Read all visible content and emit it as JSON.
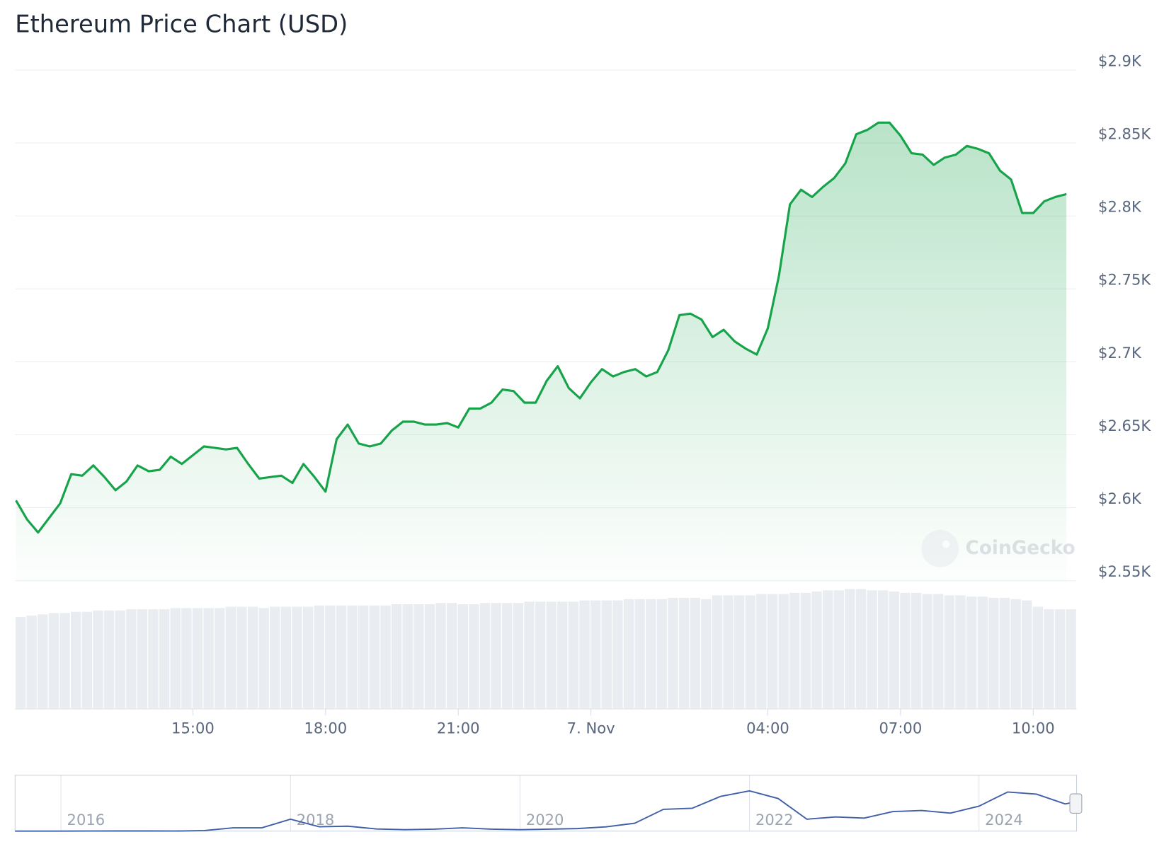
{
  "chart_data": [
    {
      "type": "area",
      "title": "Ethereum Price Chart (USD)",
      "watermark": "CoinGecko",
      "color": "#16a34a",
      "volume_color": "#e9ecf0",
      "grid": true,
      "x": [
        11,
        11.25,
        11.5,
        11.75,
        12,
        12.25,
        12.5,
        12.75,
        13,
        13.25,
        13.5,
        13.75,
        14,
        14.25,
        14.5,
        14.75,
        15,
        15.25,
        15.5,
        15.75,
        16,
        16.25,
        16.5,
        16.75,
        17,
        17.25,
        17.5,
        17.75,
        18,
        18.25,
        18.5,
        18.75,
        19,
        19.25,
        19.5,
        19.75,
        20,
        20.25,
        20.5,
        20.75,
        21,
        21.25,
        21.5,
        21.75,
        22,
        22.25,
        22.5,
        22.75,
        23,
        23.25,
        23.5,
        23.75,
        24,
        24.25,
        24.5,
        24.75,
        25,
        25.25,
        25.5,
        25.75,
        26,
        26.25,
        26.5,
        26.75,
        27,
        27.25,
        27.5,
        27.75,
        28,
        28.25,
        28.5,
        28.75,
        29,
        29.25,
        29.5,
        29.75,
        30,
        30.25,
        30.5,
        30.75,
        31,
        31.25,
        31.5,
        31.75,
        32,
        32.25,
        32.5,
        32.75,
        33,
        33.25,
        33.5,
        33.75,
        34,
        34.25,
        34.5,
        34.75
      ],
      "values": [
        2605,
        2592,
        2583,
        2593,
        2603,
        2623,
        2622,
        2629,
        2621,
        2612,
        2618,
        2629,
        2625,
        2626,
        2635,
        2630,
        2636,
        2642,
        2641,
        2640,
        2641,
        2630,
        2620,
        2621,
        2622,
        2617,
        2630,
        2621,
        2611,
        2647,
        2657,
        2644,
        2642,
        2644,
        2653,
        2659,
        2659,
        2657,
        2657,
        2658,
        2655,
        2668,
        2668,
        2672,
        2681,
        2680,
        2672,
        2672,
        2687,
        2697,
        2682,
        2675,
        2686,
        2695,
        2690,
        2693,
        2695,
        2690,
        2693,
        2708,
        2732,
        2733,
        2729,
        2717,
        2722,
        2714,
        2709,
        2705,
        2723,
        2759,
        2808,
        2818,
        2813,
        2820,
        2826,
        2836,
        2856,
        2859,
        2864,
        2864,
        2855,
        2843,
        2842,
        2835,
        2840,
        2842,
        2848,
        2846,
        2843,
        2831,
        2825,
        2802,
        2802,
        2810,
        2813,
        2815
      ],
      "volume": [
        72,
        73,
        74,
        75,
        75,
        76,
        76,
        77,
        77,
        77,
        78,
        78,
        78,
        78,
        79,
        79,
        79,
        79,
        79,
        80,
        80,
        80,
        79,
        80,
        80,
        80,
        80,
        81,
        81,
        81,
        81,
        81,
        81,
        81,
        82,
        82,
        82,
        82,
        83,
        83,
        82,
        82,
        83,
        83,
        83,
        83,
        84,
        84,
        84,
        84,
        84,
        85,
        85,
        85,
        85,
        86,
        86,
        86,
        86,
        87,
        87,
        87,
        86,
        89,
        89,
        89,
        89,
        90,
        90,
        90,
        91,
        91,
        92,
        93,
        93,
        94,
        94,
        93,
        93,
        92,
        91,
        91,
        90,
        90,
        89,
        89,
        88,
        88,
        87,
        87,
        86,
        85,
        80,
        78,
        78,
        78
      ],
      "volume_lim": [
        0,
        100
      ],
      "xlim": [
        10.98,
        34.98
      ],
      "xticks": [
        {
          "value": 15,
          "label": "15:00"
        },
        {
          "value": 18,
          "label": "18:00"
        },
        {
          "value": 21,
          "label": "21:00"
        },
        {
          "value": 24,
          "label": "7. Nov"
        },
        {
          "value": 28,
          "label": "04:00"
        },
        {
          "value": 31,
          "label": "07:00"
        },
        {
          "value": 34,
          "label": "10:00"
        }
      ],
      "ylim": [
        2550,
        2900
      ],
      "yticks": [
        {
          "value": 2550,
          "label": "$2.55K"
        },
        {
          "value": 2600,
          "label": "$2.6K"
        },
        {
          "value": 2650,
          "label": "$2.65K"
        },
        {
          "value": 2700,
          "label": "$2.7K"
        },
        {
          "value": 2750,
          "label": "$2.75K"
        },
        {
          "value": 2800,
          "label": "$2.8K"
        },
        {
          "value": 2850,
          "label": "$2.85K"
        },
        {
          "value": 2900,
          "label": "$2.9K"
        }
      ]
    },
    {
      "type": "line",
      "color": "#3f5fa8",
      "x": [
        2015.6,
        2015.75,
        2016,
        2016.25,
        2016.5,
        2016.75,
        2017,
        2017.25,
        2017.5,
        2017.75,
        2018,
        2018.25,
        2018.5,
        2018.75,
        2019,
        2019.25,
        2019.5,
        2019.75,
        2020,
        2020.25,
        2020.5,
        2020.75,
        2021,
        2021.25,
        2021.5,
        2021.75,
        2022,
        2022.25,
        2022.5,
        2022.75,
        2023,
        2023.25,
        2023.5,
        2023.75,
        2024,
        2024.25,
        2024.5,
        2024.75,
        2024.85
      ],
      "values": [
        1,
        1,
        1,
        10,
        12,
        11,
        8,
        50,
        300,
        300,
        1100,
        400,
        450,
        200,
        130,
        180,
        300,
        180,
        130,
        180,
        230,
        390,
        730,
        2000,
        2100,
        3200,
        3700,
        3000,
        1100,
        1300,
        1200,
        1800,
        1900,
        1650,
        2300,
        3600,
        3400,
        2500,
        2700
      ],
      "xlim": [
        2015.6,
        2024.85
      ],
      "ylim": [
        0,
        4800
      ],
      "xticks": [
        2016,
        2018,
        2020,
        2022,
        2024
      ]
    }
  ]
}
